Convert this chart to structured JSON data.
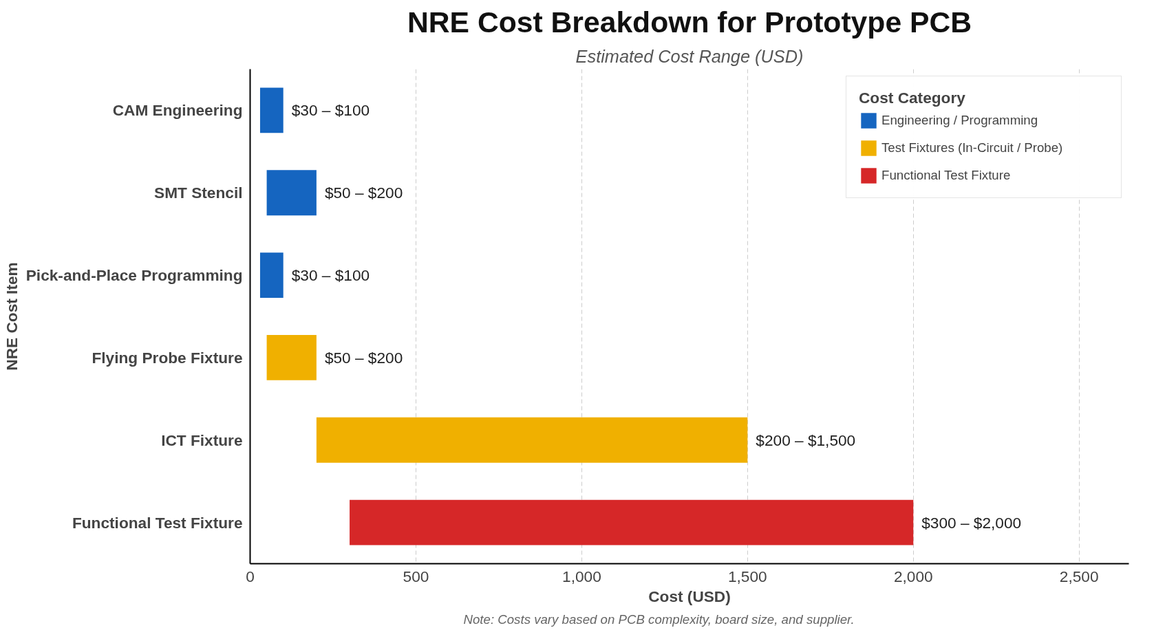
{
  "chart_data": {
    "type": "bar",
    "orientation": "horizontal",
    "title": "NRE Cost Breakdown for Prototype PCB",
    "subtitle": "Estimated Cost Range (USD)",
    "xlabel": "Cost (USD)",
    "ylabel": "NRE Cost Item",
    "legend_title": "Cost Category",
    "categories": [
      "CAM Engineering",
      "SMT Stencil",
      "Pick-and-Place Programming",
      "Flying Probe Fixture",
      "ICT Fixture",
      "Functional Test Fixture"
    ],
    "series": [
      {
        "name": "Engineering / Programming",
        "color": "#1565c0",
        "base": [
          30,
          50,
          30,
          null,
          null,
          null
        ],
        "values": [
          70,
          150,
          70,
          null,
          null,
          null
        ]
      },
      {
        "name": "Test Fixtures (In-Circuit / Probe)",
        "color": "#f0b000",
        "base": [
          null,
          null,
          null,
          50,
          200,
          null
        ],
        "values": [
          null,
          null,
          null,
          150,
          1300,
          null
        ]
      },
      {
        "name": "Functional Test Fixture",
        "color": "#d62728",
        "base": [
          null,
          null,
          null,
          null,
          null,
          300
        ],
        "values": [
          null,
          null,
          null,
          null,
          null,
          1700
        ]
      }
    ],
    "xlim": [
      0,
      2650
    ],
    "xticks": [
      0,
      500,
      {
        "value": 1000,
        "label": "1,000"
      },
      {
        "value": 1500,
        "label": "1,500"
      },
      {
        "value": 2000,
        "label": "2,000"
      },
      {
        "value": 2500,
        "label": "2,500"
      }
    ],
    "grid": "x",
    "legend": "top right",
    "annotations": [
      {
        "text": "$30 – $100",
        "x": 100,
        "y": "CAM Engineering"
      },
      {
        "text": "$50 – $200",
        "x": 200,
        "y": "SMT Stencil"
      },
      {
        "text": "$30 – $100",
        "x": 100,
        "y": "Pick-and-Place Programming"
      },
      {
        "text": "$50 – $200",
        "x": 200,
        "y": "Flying Probe Fixture"
      },
      {
        "text": "$200 – $1,500",
        "x": 1500,
        "y": "ICT Fixture"
      },
      {
        "text": "$300 – $2,000",
        "x": 2000,
        "y": "Functional Test Fixture"
      },
      "Note: Costs vary based on PCB complexity, board size, and supplier."
    ]
  }
}
